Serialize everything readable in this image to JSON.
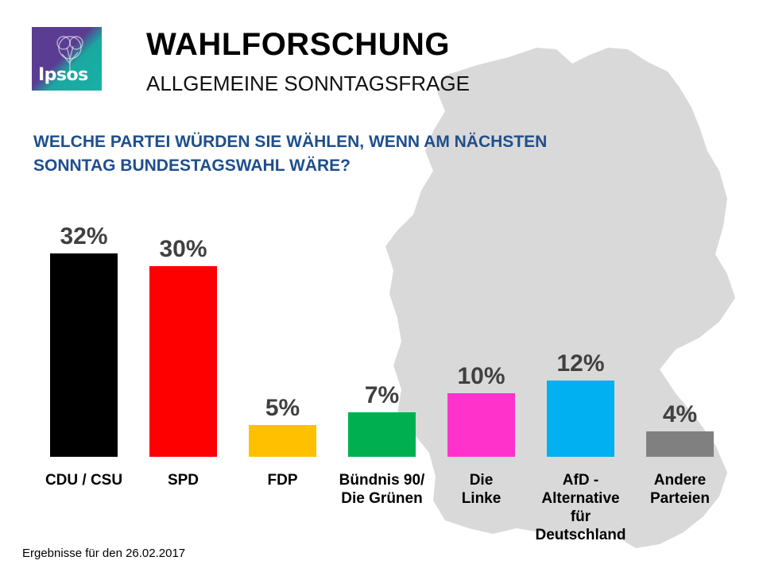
{
  "header": {
    "logo_text": "Ipsos",
    "title": "WAHLFORSCHUNG",
    "subtitle": "ALLGEMEINE SONNTAGSFRAGE"
  },
  "question": {
    "line1": "WELCHE PARTEI WÜRDEN SIE WÄHLEN, WENN AM NÄCHSTEN",
    "line2": "SONNTAG BUNDESTAGSWAHL WÄRE?"
  },
  "chart_data": {
    "type": "bar",
    "title": "WELCHE PARTEI WÜRDEN SIE WÄHLEN, WENN AM NÄCHSTEN SONNTAG BUNDESTAGSWAHL WÄRE?",
    "unit": "%",
    "categories": [
      [
        "CDU / CSU"
      ],
      [
        "SPD"
      ],
      [
        "FDP"
      ],
      [
        "Bündnis 90/",
        "Die Grünen"
      ],
      [
        "Die",
        "Linke"
      ],
      [
        "AfD -",
        "Alternative",
        "für",
        "Deutschland"
      ],
      [
        "Andere",
        "Parteien"
      ]
    ],
    "values": [
      32,
      30,
      5,
      7,
      10,
      12,
      4
    ],
    "value_labels": [
      "32%",
      "30%",
      "5%",
      "7%",
      "10%",
      "12%",
      "4%"
    ],
    "colors": [
      "#000000",
      "#ff0000",
      "#ffc000",
      "#00b050",
      "#ff33cc",
      "#00b0f0",
      "#808080"
    ],
    "ylim": [
      0,
      32
    ],
    "grid": false,
    "legend": "none"
  },
  "footnote": "Ergebnisse für den 26.02.2017"
}
